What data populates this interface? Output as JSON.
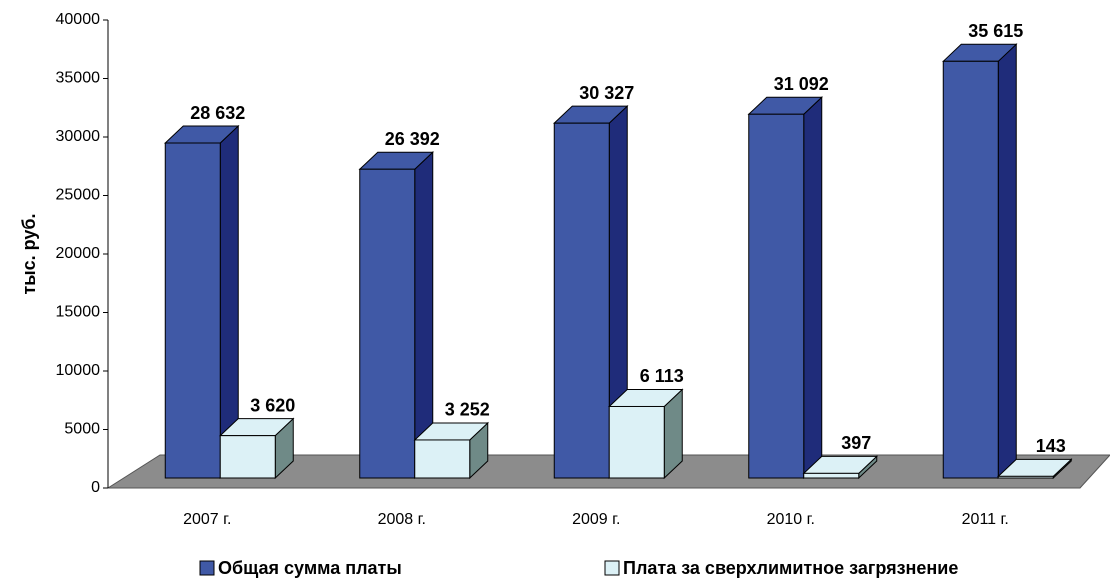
{
  "chart_data": {
    "type": "bar3d",
    "y_label": "тыс. руб.",
    "categories": [
      "2007 г.",
      "2008 г.",
      "2009 г.",
      "2010 г.",
      "2011 г."
    ],
    "series": [
      {
        "name": "Общая сумма платы",
        "color": "#4059a6",
        "side_color": "#1f2c7a",
        "values": [
          28632,
          26392,
          30327,
          31092,
          35615
        ],
        "value_labels": [
          "28 632",
          "26 392",
          "30 327",
          "31 092",
          "35 615"
        ]
      },
      {
        "name": "Плата за сверхлимитное загрязнение",
        "color": "#dcf1f6",
        "side_color": "#6f8a87",
        "values": [
          3620,
          3252,
          6113,
          397,
          143
        ],
        "value_labels": [
          "3 620",
          "3 252",
          "6 113",
          "397",
          "143"
        ]
      }
    ],
    "ylim": [
      0,
      40000
    ],
    "yticks": [
      0,
      5000,
      10000,
      15000,
      20000,
      25000,
      30000,
      35000,
      40000
    ]
  }
}
